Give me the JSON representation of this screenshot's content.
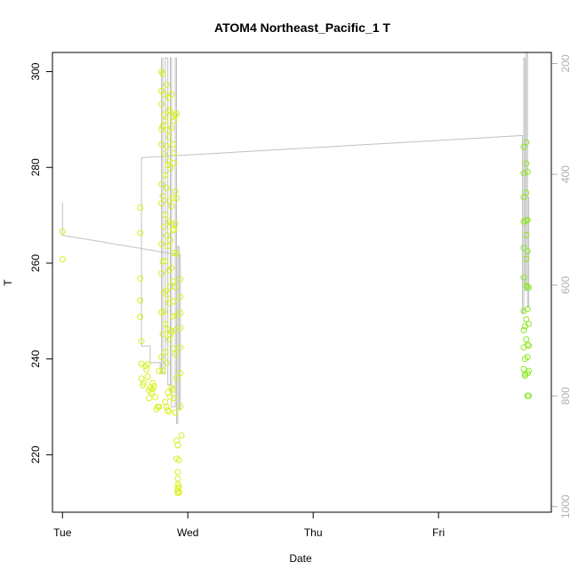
{
  "chart_data": {
    "type": "scatter",
    "title": "ATOM4 Northeast_Pacific_1 T",
    "xlabel": "Date",
    "ylabel": "T",
    "x_ticks": [
      "Tue",
      "Wed",
      "Thu",
      "Fri"
    ],
    "x_tick_values": [
      0,
      1,
      2,
      3
    ],
    "xlim": [
      -0.08,
      3.9
    ],
    "ylim": [
      208,
      304
    ],
    "y_ticks": [
      220,
      240,
      260,
      280,
      300
    ],
    "y2_ticks": [
      200,
      400,
      600,
      800,
      1000
    ],
    "y2lim": [
      1010,
      180
    ],
    "grid": false,
    "point_colors": {
      "yellow": "#d8f020",
      "yellow_green": "#b8ec20",
      "green": "#8ce820",
      "line": "#c0c0c0",
      "axis2": "#b0b0b0"
    },
    "series": [
      {
        "color_key": "yellow",
        "points": [
          [
            0.0,
            266.6
          ],
          [
            0.0,
            260.8
          ],
          [
            0.62,
            271.6
          ],
          [
            0.62,
            266.3
          ],
          [
            0.62,
            256.8
          ],
          [
            0.62,
            252.2
          ],
          [
            0.62,
            248.8
          ],
          [
            0.63,
            243.7
          ],
          [
            0.63,
            239.0
          ],
          [
            0.63,
            235.9
          ],
          [
            0.64,
            234.5
          ],
          [
            0.65,
            235.0
          ],
          [
            0.66,
            238.5
          ],
          [
            0.67,
            237.8
          ],
          [
            0.68,
            238.9
          ],
          [
            0.68,
            236.3
          ],
          [
            0.69,
            233.4
          ],
          [
            0.69,
            231.8
          ],
          [
            0.7,
            234.0
          ],
          [
            0.71,
            233.0
          ],
          [
            0.72,
            235.0
          ],
          [
            0.72,
            233.7
          ],
          [
            0.73,
            234.3
          ],
          [
            0.74,
            232.0
          ],
          [
            0.75,
            229.5
          ],
          [
            0.76,
            230.0
          ],
          [
            0.77,
            230.0
          ],
          [
            0.77,
            237.5
          ],
          [
            0.79,
            300.0
          ],
          [
            0.79,
            296.0
          ],
          [
            0.79,
            293.2
          ],
          [
            0.79,
            288.0
          ],
          [
            0.79,
            284.8
          ],
          [
            0.79,
            276.5
          ],
          [
            0.79,
            272.5
          ],
          [
            0.79,
            264.0
          ],
          [
            0.79,
            257.9
          ],
          [
            0.79,
            249.7
          ],
          [
            0.79,
            240.4
          ],
          [
            0.8,
            299.6
          ],
          [
            0.8,
            288.6
          ],
          [
            0.8,
            274.0
          ],
          [
            0.8,
            260.3
          ],
          [
            0.8,
            245.2
          ],
          [
            0.8,
            237.6
          ],
          [
            0.81,
            295.3
          ],
          [
            0.81,
            291.0
          ],
          [
            0.81,
            282.8
          ],
          [
            0.81,
            267.6
          ],
          [
            0.81,
            253.9
          ],
          [
            0.81,
            249.9
          ],
          [
            0.82,
            289.7
          ],
          [
            0.82,
            278.4
          ],
          [
            0.82,
            270.1
          ],
          [
            0.82,
            260.4
          ],
          [
            0.82,
            247.3
          ],
          [
            0.82,
            241.4
          ],
          [
            0.82,
            231.0
          ],
          [
            0.83,
            297.3
          ],
          [
            0.83,
            284.4
          ],
          [
            0.83,
            275.7
          ],
          [
            0.83,
            265.8
          ],
          [
            0.83,
            254.3
          ],
          [
            0.83,
            239.2
          ],
          [
            0.83,
            230.0
          ],
          [
            0.84,
            287.8
          ],
          [
            0.84,
            280.5
          ],
          [
            0.84,
            263.6
          ],
          [
            0.84,
            252.6
          ],
          [
            0.84,
            246.2
          ],
          [
            0.84,
            233.0
          ],
          [
            0.84,
            229.3
          ],
          [
            0.85,
            294.5
          ],
          [
            0.85,
            292.0
          ],
          [
            0.85,
            286.3
          ],
          [
            0.85,
            281.3
          ],
          [
            0.85,
            273.0
          ],
          [
            0.85,
            268.7
          ],
          [
            0.85,
            258.5
          ],
          [
            0.85,
            251.7
          ],
          [
            0.85,
            244.1
          ],
          [
            0.85,
            229.0
          ],
          [
            0.86,
            291.6
          ],
          [
            0.86,
            279.8
          ],
          [
            0.86,
            264.8
          ],
          [
            0.86,
            255.1
          ],
          [
            0.86,
            245.0
          ],
          [
            0.86,
            232.1
          ],
          [
            0.87,
            295.3
          ],
          [
            0.87,
            288.3
          ],
          [
            0.87,
            271.9
          ],
          [
            0.87,
            268.3
          ],
          [
            0.87,
            259.0
          ],
          [
            0.87,
            245.8
          ],
          [
            0.87,
            234.0
          ],
          [
            0.88,
            290.5
          ],
          [
            0.88,
            284.8
          ],
          [
            0.88,
            273.6
          ],
          [
            0.88,
            266.9
          ],
          [
            0.88,
            256.2
          ],
          [
            0.88,
            248.9
          ],
          [
            0.88,
            233.6
          ],
          [
            0.89,
            289.8
          ],
          [
            0.89,
            283.0
          ],
          [
            0.89,
            280.9
          ],
          [
            0.89,
            267.0
          ],
          [
            0.89,
            262.1
          ],
          [
            0.89,
            252.0
          ],
          [
            0.89,
            242.2
          ],
          [
            0.89,
            231.8
          ],
          [
            0.9,
            290.9
          ],
          [
            0.9,
            275.0
          ],
          [
            0.9,
            268.2
          ],
          [
            0.9,
            255.0
          ],
          [
            0.9,
            246.0
          ],
          [
            0.9,
            241.0
          ],
          [
            0.9,
            228.8
          ],
          [
            0.91,
            291.2
          ],
          [
            0.91,
            273.6
          ],
          [
            0.91,
            262.0
          ],
          [
            0.91,
            249.1
          ],
          [
            0.91,
            236.0
          ],
          [
            0.91,
            223.0
          ],
          [
            0.91,
            219.2
          ],
          [
            0.92,
            222.0
          ],
          [
            0.92,
            216.4
          ],
          [
            0.92,
            215.0
          ],
          [
            0.92,
            213.8
          ],
          [
            0.92,
            213.0
          ],
          [
            0.92,
            212.4
          ],
          [
            0.92,
            212.0
          ],
          [
            0.93,
            213.4
          ],
          [
            0.93,
            212.2
          ],
          [
            0.93,
            218.9
          ],
          [
            0.94,
            256.6
          ],
          [
            0.94,
            253.0
          ],
          [
            0.94,
            249.6
          ],
          [
            0.94,
            246.5
          ],
          [
            0.94,
            242.4
          ],
          [
            0.94,
            237.0
          ],
          [
            0.94,
            230.1
          ],
          [
            0.95,
            224.0
          ]
        ]
      },
      {
        "color_key": "green",
        "points": [
          [
            3.68,
            284.3
          ],
          [
            3.68,
            278.8
          ],
          [
            3.68,
            273.8
          ],
          [
            3.68,
            268.7
          ],
          [
            3.68,
            263.2
          ],
          [
            3.68,
            257.0
          ],
          [
            3.68,
            250.0
          ],
          [
            3.68,
            246.0
          ],
          [
            3.68,
            242.4
          ],
          [
            3.68,
            237.9
          ],
          [
            3.69,
            246.8
          ],
          [
            3.69,
            240.0
          ],
          [
            3.69,
            236.9
          ],
          [
            3.69,
            236.5
          ],
          [
            3.7,
            285.2
          ],
          [
            3.7,
            280.8
          ],
          [
            3.7,
            274.7
          ],
          [
            3.7,
            268.9
          ],
          [
            3.7,
            265.9
          ],
          [
            3.7,
            260.9
          ],
          [
            3.7,
            255.3
          ],
          [
            3.7,
            248.3
          ],
          [
            3.7,
            244.1
          ],
          [
            3.71,
            279.1
          ],
          [
            3.71,
            269.0
          ],
          [
            3.71,
            262.5
          ],
          [
            3.71,
            255.1
          ],
          [
            3.71,
            250.4
          ],
          [
            3.71,
            243.0
          ],
          [
            3.71,
            240.4
          ],
          [
            3.71,
            237.0
          ],
          [
            3.71,
            232.3
          ],
          [
            3.72,
            254.9
          ],
          [
            3.72,
            247.3
          ],
          [
            3.72,
            242.8
          ],
          [
            3.72,
            237.5
          ],
          [
            3.72,
            232.3
          ]
        ]
      }
    ],
    "line_series": {
      "axis": "right",
      "points": [
        [
          0.0,
          450
        ],
        [
          0.0,
          510
        ],
        [
          0.92,
          545
        ],
        [
          0.94,
          545
        ],
        [
          0.94,
          825
        ],
        [
          0.93,
          825
        ],
        [
          0.93,
          530
        ],
        [
          0.92,
          530
        ],
        [
          0.92,
          850
        ],
        [
          0.91,
          850
        ],
        [
          0.91,
          190
        ],
        [
          0.9,
          190
        ],
        [
          0.9,
          820
        ],
        [
          0.87,
          820
        ],
        [
          0.87,
          190
        ],
        [
          0.86,
          190
        ],
        [
          0.86,
          780
        ],
        [
          0.84,
          780
        ],
        [
          0.84,
          190
        ],
        [
          0.82,
          190
        ],
        [
          0.82,
          760
        ],
        [
          0.8,
          760
        ],
        [
          0.8,
          190
        ],
        [
          0.79,
          190
        ],
        [
          0.79,
          760
        ],
        [
          0.78,
          760
        ],
        [
          0.78,
          740
        ],
        [
          0.7,
          740
        ],
        [
          0.7,
          710
        ],
        [
          0.63,
          710
        ],
        [
          0.63,
          370
        ],
        [
          3.67,
          330
        ],
        [
          3.67,
          650
        ],
        [
          3.68,
          650
        ],
        [
          3.68,
          190
        ],
        [
          3.69,
          190
        ],
        [
          3.69,
          610
        ],
        [
          3.7,
          610
        ],
        [
          3.7,
          180
        ],
        [
          3.71,
          180
        ],
        [
          3.71,
          640
        ],
        [
          3.72,
          640
        ],
        [
          3.72,
          440
        ]
      ]
    }
  }
}
